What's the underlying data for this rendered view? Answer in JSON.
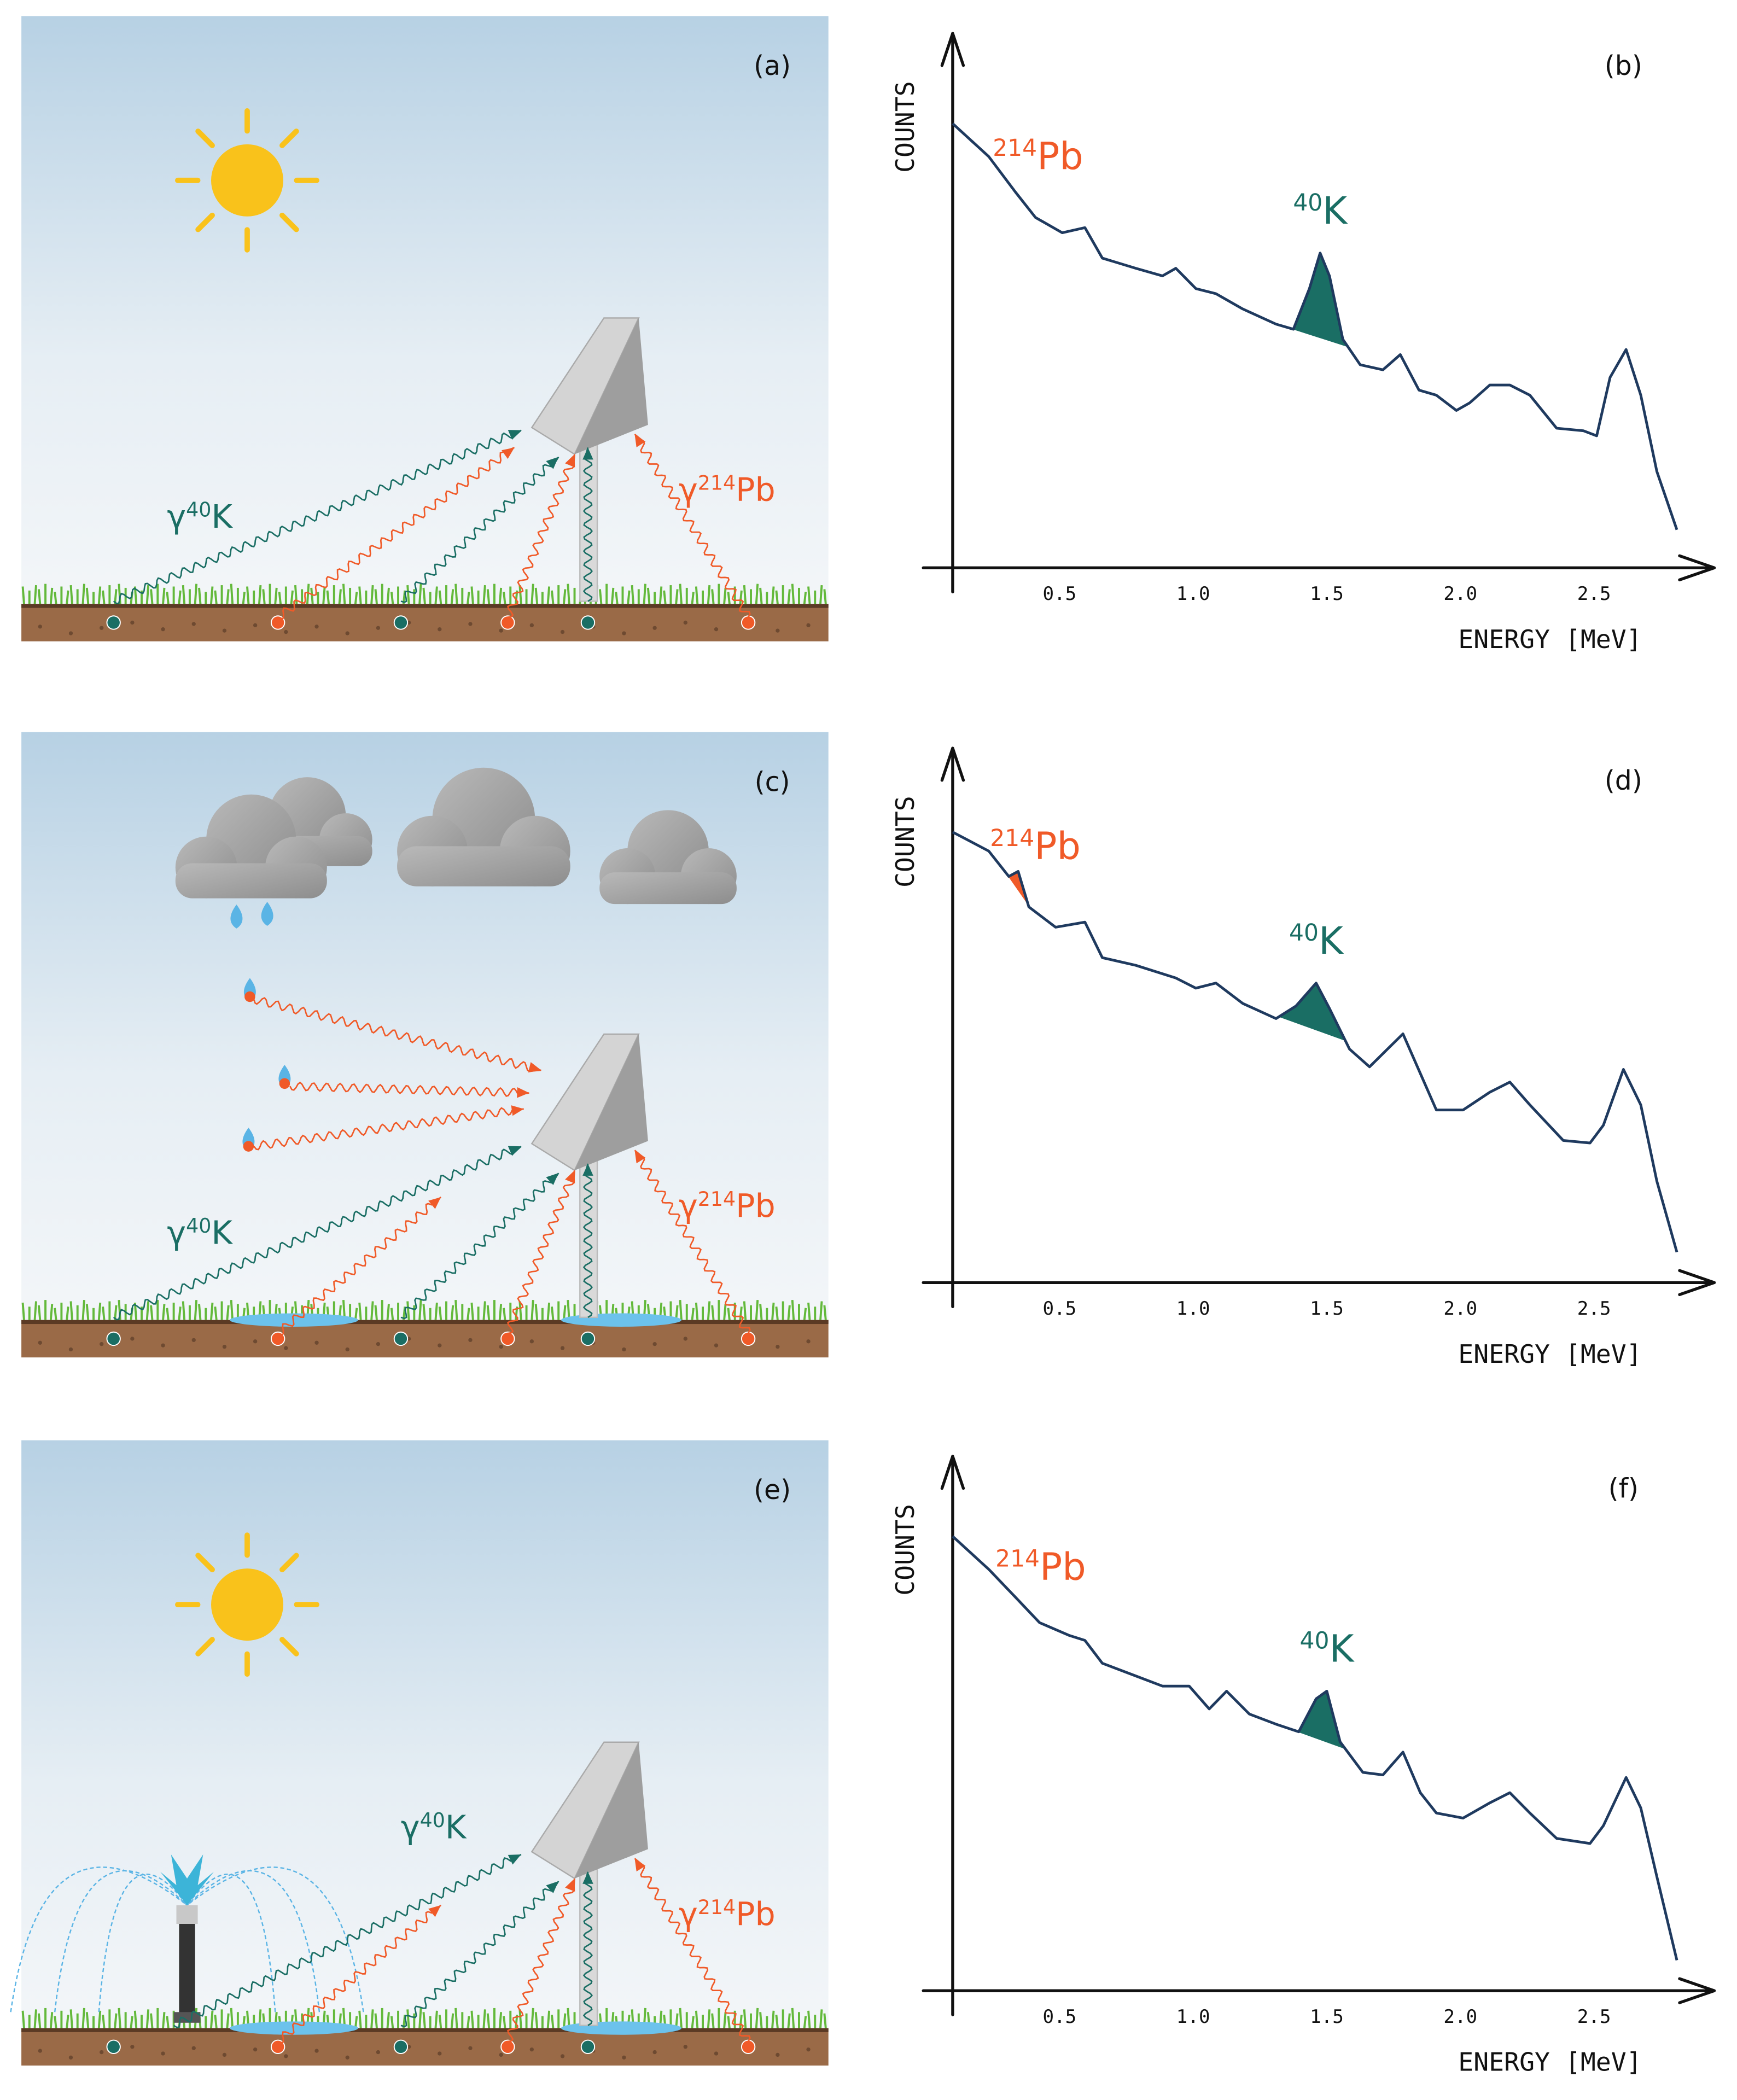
{
  "panels": [
    {
      "label": "(a)",
      "gamma_k": {
        "symbol": "γ",
        "mass": "40",
        "element": "K"
      },
      "gamma_pb": {
        "symbol": "γ",
        "mass": "214",
        "element": "Pb"
      }
    },
    {
      "label": "(c)",
      "gamma_k": {
        "symbol": "γ",
        "mass": "40",
        "element": "K"
      },
      "gamma_pb": {
        "symbol": "γ",
        "mass": "214",
        "element": "Pb"
      }
    },
    {
      "label": "(e)",
      "gamma_k": {
        "symbol": "γ",
        "mass": "40",
        "element": "K"
      },
      "gamma_pb": {
        "symbol": "γ",
        "mass": "214",
        "element": "Pb"
      }
    }
  ],
  "chart_data": [
    {
      "type": "line",
      "label": "(b)",
      "ylabel": "COUNTS",
      "xlabel": "ENERGY [MeV]",
      "color": "#1f3a5f",
      "xlim": [
        0.1,
        2.95
      ],
      "ylim": [
        0,
        100
      ],
      "xticks": [
        0.5,
        {
          "value": 1,
          "label": "1.0"
        },
        1.5,
        {
          "value": 2,
          "label": "2.0"
        },
        2.5
      ],
      "x": [
        0.1,
        0.235,
        0.335,
        0.41,
        0.51,
        0.595,
        0.66,
        0.785,
        0.885,
        0.935,
        1.01,
        1.085,
        1.185,
        1.31,
        1.375,
        1.435,
        1.475,
        1.51,
        1.56,
        1.625,
        1.71,
        1.775,
        1.845,
        1.91,
        1.985,
        2.035,
        2.11,
        2.185,
        2.26,
        2.36,
        2.46,
        2.51,
        2.56,
        2.62,
        2.675,
        2.735,
        2.81
      ],
      "values": [
        87.5,
        81,
        74,
        69,
        66,
        67,
        61,
        59,
        57.5,
        59,
        55,
        54,
        51,
        48,
        47,
        55,
        62,
        57.5,
        45,
        40,
        39,
        42,
        35,
        34,
        31,
        32.5,
        36,
        36,
        34,
        27.5,
        27,
        26,
        37.5,
        43,
        34,
        19,
        7.5
      ],
      "annotations": [
        {
          "mass": "214",
          "element": "Pb",
          "color": "#f05a28",
          "shade": [
            0.3,
            0.37
          ]
        },
        {
          "mass": "40",
          "element": "K",
          "color": "#1a6e64",
          "shade": [
            1.34,
            1.58
          ]
        }
      ]
    },
    {
      "type": "line",
      "label": "(d)",
      "ylabel": "COUNTS",
      "xlabel": "ENERGY [MeV]",
      "color": "#1f3a5f",
      "xlim": [
        0.1,
        2.95
      ],
      "ylim": [
        0,
        100
      ],
      "xticks": [
        0.5,
        {
          "value": 1,
          "label": "1.0"
        },
        1.5,
        {
          "value": 2,
          "label": "2.0"
        },
        2.5
      ],
      "x": [
        0.1,
        0.235,
        0.31,
        0.345,
        0.385,
        0.485,
        0.595,
        0.66,
        0.785,
        0.935,
        1.01,
        1.085,
        1.185,
        1.31,
        1.385,
        1.46,
        1.51,
        1.585,
        1.66,
        1.785,
        1.86,
        1.91,
        2.01,
        2.11,
        2.185,
        2.26,
        2.385,
        2.485,
        2.535,
        2.61,
        2.675,
        2.735,
        2.81
      ],
      "values": [
        88.75,
        85,
        80,
        81,
        74,
        70,
        71,
        64,
        62.5,
        60,
        58,
        59,
        55,
        52,
        54.5,
        59,
        54,
        46,
        42.5,
        49,
        40,
        34,
        34,
        37.5,
        39.5,
        35,
        28,
        27.5,
        31,
        42,
        35,
        20,
        6
      ],
      "annotations": [
        {
          "mass": "214",
          "element": "Pb",
          "color": "#f05a28",
          "shade": [
            0.29,
            0.39
          ]
        },
        {
          "mass": "40",
          "element": "K",
          "color": "#1a6e64",
          "shade": [
            1.32,
            1.57
          ]
        }
      ]
    },
    {
      "type": "line",
      "label": "(f)",
      "ylabel": "COUNTS",
      "xlabel": "ENERGY [MeV]",
      "color": "#1f3a5f",
      "xlim": [
        0.1,
        2.95
      ],
      "ylim": [
        0,
        100
      ],
      "xticks": [
        0.5,
        {
          "value": 1,
          "label": "1.0"
        },
        1.5,
        {
          "value": 2,
          "label": "2.0"
        },
        2.5
      ],
      "x": [
        0.1,
        0.235,
        0.335,
        0.425,
        0.535,
        0.595,
        0.66,
        0.785,
        0.885,
        0.985,
        1.06,
        1.125,
        1.21,
        1.31,
        1.395,
        1.46,
        1.5,
        1.55,
        1.635,
        1.71,
        1.785,
        1.85,
        1.91,
        2.01,
        2.11,
        2.185,
        2.26,
        2.36,
        2.485,
        2.535,
        2.62,
        2.675,
        2.735,
        2.81
      ],
      "values": [
        89.5,
        83,
        77.5,
        72.5,
        70,
        69,
        64.5,
        62,
        60,
        60,
        55.5,
        59,
        54.5,
        52.5,
        51,
        57.5,
        59,
        49,
        43,
        42.5,
        47,
        39,
        35,
        34,
        37,
        39,
        35,
        30,
        29,
        32.5,
        42,
        36,
        22.5,
        6
      ],
      "annotations": [
        {
          "mass": "214",
          "element": "Pb",
          "color": "#f05a28",
          "shade": [
            0.31,
            0.36
          ]
        },
        {
          "mass": "40",
          "element": "K",
          "color": "#1a6e64",
          "shade": [
            1.32,
            1.57
          ]
        }
      ]
    }
  ]
}
